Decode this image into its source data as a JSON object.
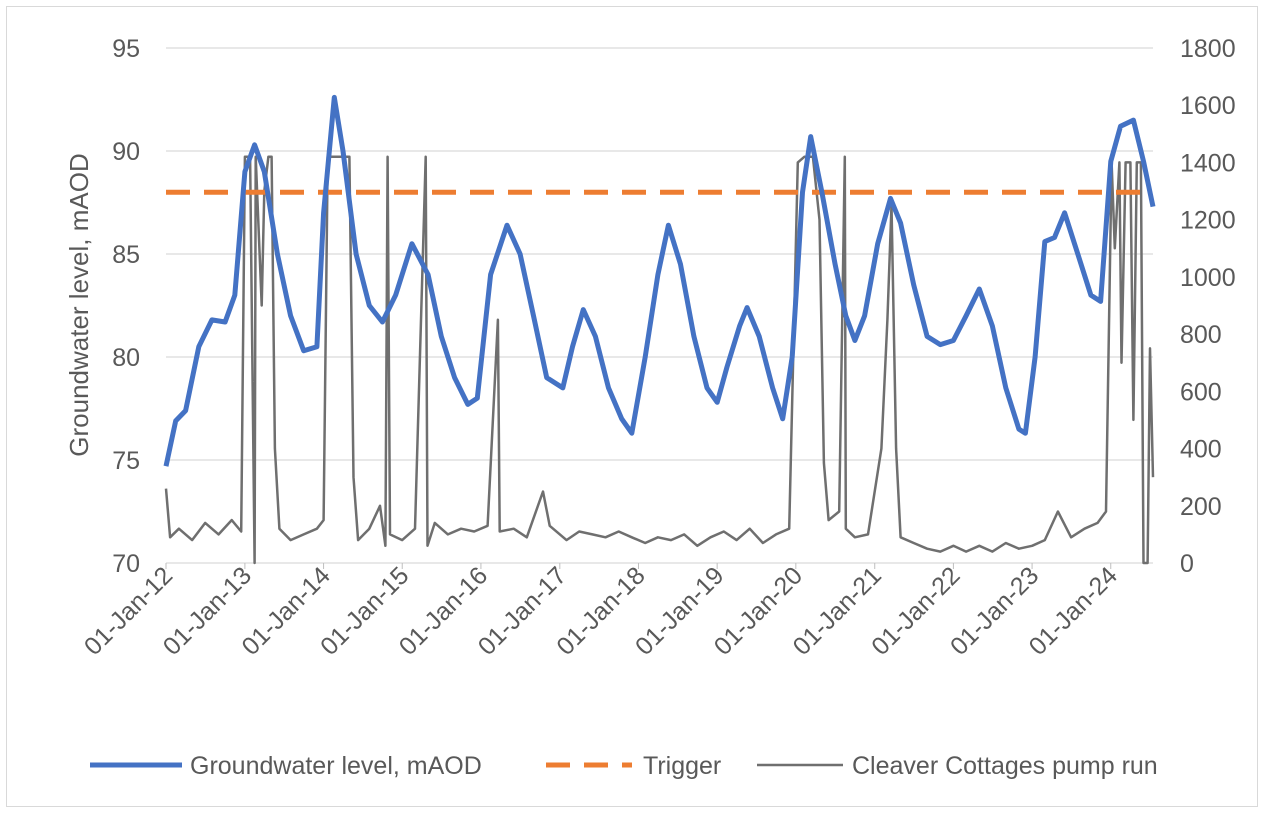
{
  "chart_data": {
    "type": "line",
    "title": "",
    "ylabel": "Groundwater level, mAOD",
    "y2label": "",
    "ylim": [
      70,
      95
    ],
    "y2lim": [
      0,
      1800
    ],
    "grid": true,
    "legend_position": "bottom",
    "yticks": [
      "70",
      "75",
      "80",
      "85",
      "90",
      "95"
    ],
    "y2ticks": [
      "0",
      "200",
      "400",
      "600",
      "800",
      "1000",
      "1200",
      "1400",
      "1600",
      "1800"
    ],
    "xticks": [
      "01-Jan-12",
      "01-Jan-13",
      "01-Jan-14",
      "01-Jan-15",
      "01-Jan-16",
      "01-Jan-17",
      "01-Jan-18",
      "01-Jan-19",
      "01-Jan-20",
      "01-Jan-21",
      "01-Jan-22",
      "01-Jan-23",
      "01-Jan-24"
    ],
    "xlim": [
      "2012-01-01",
      "2024-07-15"
    ],
    "series": [
      {
        "name": "Groundwater level, mAOD",
        "axis": "left",
        "color": "#4472c4",
        "style": "solid",
        "points": [
          [
            "2012-01-01",
            74.7
          ],
          [
            "2012-02-15",
            76.9
          ],
          [
            "2012-04-01",
            77.4
          ],
          [
            "2012-06-01",
            80.5
          ],
          [
            "2012-08-01",
            81.8
          ],
          [
            "2012-10-01",
            81.7
          ],
          [
            "2012-11-15",
            83.0
          ],
          [
            "2013-01-01",
            89.0
          ],
          [
            "2013-02-15",
            90.3
          ],
          [
            "2013-04-01",
            89.0
          ],
          [
            "2013-06-01",
            85.0
          ],
          [
            "2013-08-01",
            82.0
          ],
          [
            "2013-10-01",
            80.3
          ],
          [
            "2013-12-01",
            80.5
          ],
          [
            "2014-01-01",
            87.0
          ],
          [
            "2014-02-20",
            92.6
          ],
          [
            "2014-04-01",
            90.0
          ],
          [
            "2014-06-01",
            85.0
          ],
          [
            "2014-08-01",
            82.5
          ],
          [
            "2014-10-01",
            81.7
          ],
          [
            "2014-12-01",
            83.0
          ],
          [
            "2015-02-15",
            85.5
          ],
          [
            "2015-05-01",
            84.0
          ],
          [
            "2015-07-01",
            81.0
          ],
          [
            "2015-09-01",
            79.0
          ],
          [
            "2015-11-01",
            77.7
          ],
          [
            "2015-12-15",
            78.0
          ],
          [
            "2016-02-15",
            84.0
          ],
          [
            "2016-05-01",
            86.4
          ],
          [
            "2016-07-01",
            85.0
          ],
          [
            "2016-09-01",
            82.0
          ],
          [
            "2016-11-01",
            79.0
          ],
          [
            "2017-01-15",
            78.5
          ],
          [
            "2017-03-01",
            80.5
          ],
          [
            "2017-04-20",
            82.3
          ],
          [
            "2017-06-15",
            81.0
          ],
          [
            "2017-08-15",
            78.5
          ],
          [
            "2017-10-15",
            77.0
          ],
          [
            "2017-12-01",
            76.3
          ],
          [
            "2018-02-01",
            80.0
          ],
          [
            "2018-04-01",
            84.0
          ],
          [
            "2018-05-20",
            86.4
          ],
          [
            "2018-07-15",
            84.5
          ],
          [
            "2018-09-15",
            81.0
          ],
          [
            "2018-11-15",
            78.5
          ],
          [
            "2019-01-01",
            77.8
          ],
          [
            "2019-02-15",
            79.5
          ],
          [
            "2019-04-15",
            81.5
          ],
          [
            "2019-05-20",
            82.4
          ],
          [
            "2019-07-15",
            81.0
          ],
          [
            "2019-09-15",
            78.5
          ],
          [
            "2019-11-01",
            77.0
          ],
          [
            "2019-12-15",
            80.0
          ],
          [
            "2020-02-01",
            88.0
          ],
          [
            "2020-03-10",
            90.7
          ],
          [
            "2020-05-01",
            88.0
          ],
          [
            "2020-07-01",
            84.5
          ],
          [
            "2020-08-20",
            82.0
          ],
          [
            "2020-10-01",
            80.8
          ],
          [
            "2020-11-15",
            82.0
          ],
          [
            "2021-01-15",
            85.5
          ],
          [
            "2021-03-15",
            87.7
          ],
          [
            "2021-05-01",
            86.5
          ],
          [
            "2021-07-01",
            83.5
          ],
          [
            "2021-09-01",
            81.0
          ],
          [
            "2021-11-01",
            80.6
          ],
          [
            "2022-01-01",
            80.8
          ],
          [
            "2022-03-01",
            82.0
          ],
          [
            "2022-05-01",
            83.3
          ],
          [
            "2022-07-01",
            81.5
          ],
          [
            "2022-09-01",
            78.5
          ],
          [
            "2022-11-01",
            76.5
          ],
          [
            "2022-12-01",
            76.3
          ],
          [
            "2023-01-15",
            80.0
          ],
          [
            "2023-03-01",
            85.6
          ],
          [
            "2023-04-15",
            85.8
          ],
          [
            "2023-06-01",
            87.0
          ],
          [
            "2023-08-01",
            85.0
          ],
          [
            "2023-10-01",
            83.0
          ],
          [
            "2023-11-15",
            82.7
          ],
          [
            "2024-01-01",
            89.5
          ],
          [
            "2024-02-15",
            91.2
          ],
          [
            "2024-04-15",
            91.5
          ],
          [
            "2024-06-01",
            89.5
          ],
          [
            "2024-07-15",
            87.3
          ]
        ]
      },
      {
        "name": "Trigger",
        "axis": "left",
        "color": "#ed7d31",
        "style": "dashed",
        "points": [
          [
            "2012-01-01",
            88.0
          ],
          [
            "2024-07-15",
            88.0
          ]
        ]
      },
      {
        "name": "Cleaver Cottages pump run",
        "axis": "right",
        "color": "#6f6f6f",
        "style": "solid",
        "points": [
          [
            "2012-01-01",
            260
          ],
          [
            "2012-01-20",
            90
          ],
          [
            "2012-03-01",
            120
          ],
          [
            "2012-05-01",
            80
          ],
          [
            "2012-07-01",
            140
          ],
          [
            "2012-09-01",
            100
          ],
          [
            "2012-11-01",
            150
          ],
          [
            "2012-12-15",
            110
          ],
          [
            "2013-01-01",
            1420
          ],
          [
            "2013-01-25",
            1420
          ],
          [
            "2013-02-15",
            0
          ],
          [
            "2013-02-20",
            1420
          ],
          [
            "2013-03-20",
            900
          ],
          [
            "2013-04-01",
            1300
          ],
          [
            "2013-04-20",
            1420
          ],
          [
            "2013-05-05",
            1420
          ],
          [
            "2013-05-20",
            400
          ],
          [
            "2013-06-10",
            120
          ],
          [
            "2013-08-01",
            80
          ],
          [
            "2013-10-01",
            100
          ],
          [
            "2013-12-01",
            120
          ],
          [
            "2014-01-01",
            150
          ],
          [
            "2014-01-20",
            1420
          ],
          [
            "2014-02-10",
            1420
          ],
          [
            "2014-03-10",
            1420
          ],
          [
            "2014-04-01",
            1420
          ],
          [
            "2014-05-01",
            1420
          ],
          [
            "2014-05-20",
            300
          ],
          [
            "2014-06-10",
            80
          ],
          [
            "2014-08-01",
            120
          ],
          [
            "2014-09-20",
            200
          ],
          [
            "2014-10-15",
            60
          ],
          [
            "2014-10-25",
            1420
          ],
          [
            "2014-11-05",
            100
          ],
          [
            "2015-01-01",
            80
          ],
          [
            "2015-03-01",
            120
          ],
          [
            "2015-04-20",
            1420
          ],
          [
            "2015-04-28",
            60
          ],
          [
            "2015-06-01",
            140
          ],
          [
            "2015-08-01",
            100
          ],
          [
            "2015-10-01",
            120
          ],
          [
            "2015-12-01",
            110
          ],
          [
            "2016-02-01",
            130
          ],
          [
            "2016-03-20",
            850
          ],
          [
            "2016-03-28",
            110
          ],
          [
            "2016-06-01",
            120
          ],
          [
            "2016-08-01",
            90
          ],
          [
            "2016-10-15",
            250
          ],
          [
            "2016-11-15",
            130
          ],
          [
            "2017-02-01",
            80
          ],
          [
            "2017-04-01",
            110
          ],
          [
            "2017-06-01",
            100
          ],
          [
            "2017-08-01",
            90
          ],
          [
            "2017-10-01",
            110
          ],
          [
            "2017-12-01",
            90
          ],
          [
            "2018-02-01",
            70
          ],
          [
            "2018-04-01",
            90
          ],
          [
            "2018-06-01",
            80
          ],
          [
            "2018-08-01",
            100
          ],
          [
            "2018-10-01",
            60
          ],
          [
            "2018-12-01",
            90
          ],
          [
            "2019-02-01",
            110
          ],
          [
            "2019-04-01",
            80
          ],
          [
            "2019-06-01",
            120
          ],
          [
            "2019-08-01",
            70
          ],
          [
            "2019-10-01",
            100
          ],
          [
            "2019-12-01",
            120
          ],
          [
            "2020-01-10",
            1400
          ],
          [
            "2020-02-10",
            1420
          ],
          [
            "2020-03-20",
            1420
          ],
          [
            "2020-04-20",
            1200
          ],
          [
            "2020-05-10",
            350
          ],
          [
            "2020-06-01",
            150
          ],
          [
            "2020-07-20",
            180
          ],
          [
            "2020-08-15",
            1420
          ],
          [
            "2020-08-20",
            120
          ],
          [
            "2020-10-01",
            90
          ],
          [
            "2020-12-01",
            100
          ],
          [
            "2021-02-01",
            400
          ],
          [
            "2021-03-01",
            850
          ],
          [
            "2021-03-20",
            1250
          ],
          [
            "2021-04-10",
            400
          ],
          [
            "2021-05-01",
            90
          ],
          [
            "2021-07-01",
            70
          ],
          [
            "2021-09-01",
            50
          ],
          [
            "2021-11-01",
            40
          ],
          [
            "2022-01-01",
            60
          ],
          [
            "2022-03-01",
            40
          ],
          [
            "2022-05-01",
            60
          ],
          [
            "2022-07-01",
            40
          ],
          [
            "2022-09-01",
            70
          ],
          [
            "2022-11-01",
            50
          ],
          [
            "2023-01-01",
            60
          ],
          [
            "2023-03-01",
            80
          ],
          [
            "2023-05-01",
            180
          ],
          [
            "2023-07-01",
            90
          ],
          [
            "2023-09-01",
            120
          ],
          [
            "2023-11-01",
            140
          ],
          [
            "2023-12-10",
            180
          ],
          [
            "2024-01-05",
            1400
          ],
          [
            "2024-01-20",
            1100
          ],
          [
            "2024-02-10",
            1400
          ],
          [
            "2024-02-20",
            700
          ],
          [
            "2024-03-10",
            1400
          ],
          [
            "2024-04-01",
            1400
          ],
          [
            "2024-04-15",
            500
          ],
          [
            "2024-05-01",
            1400
          ],
          [
            "2024-05-20",
            1400
          ],
          [
            "2024-06-01",
            0
          ],
          [
            "2024-06-20",
            0
          ],
          [
            "2024-07-01",
            750
          ],
          [
            "2024-07-15",
            300
          ]
        ]
      }
    ]
  }
}
